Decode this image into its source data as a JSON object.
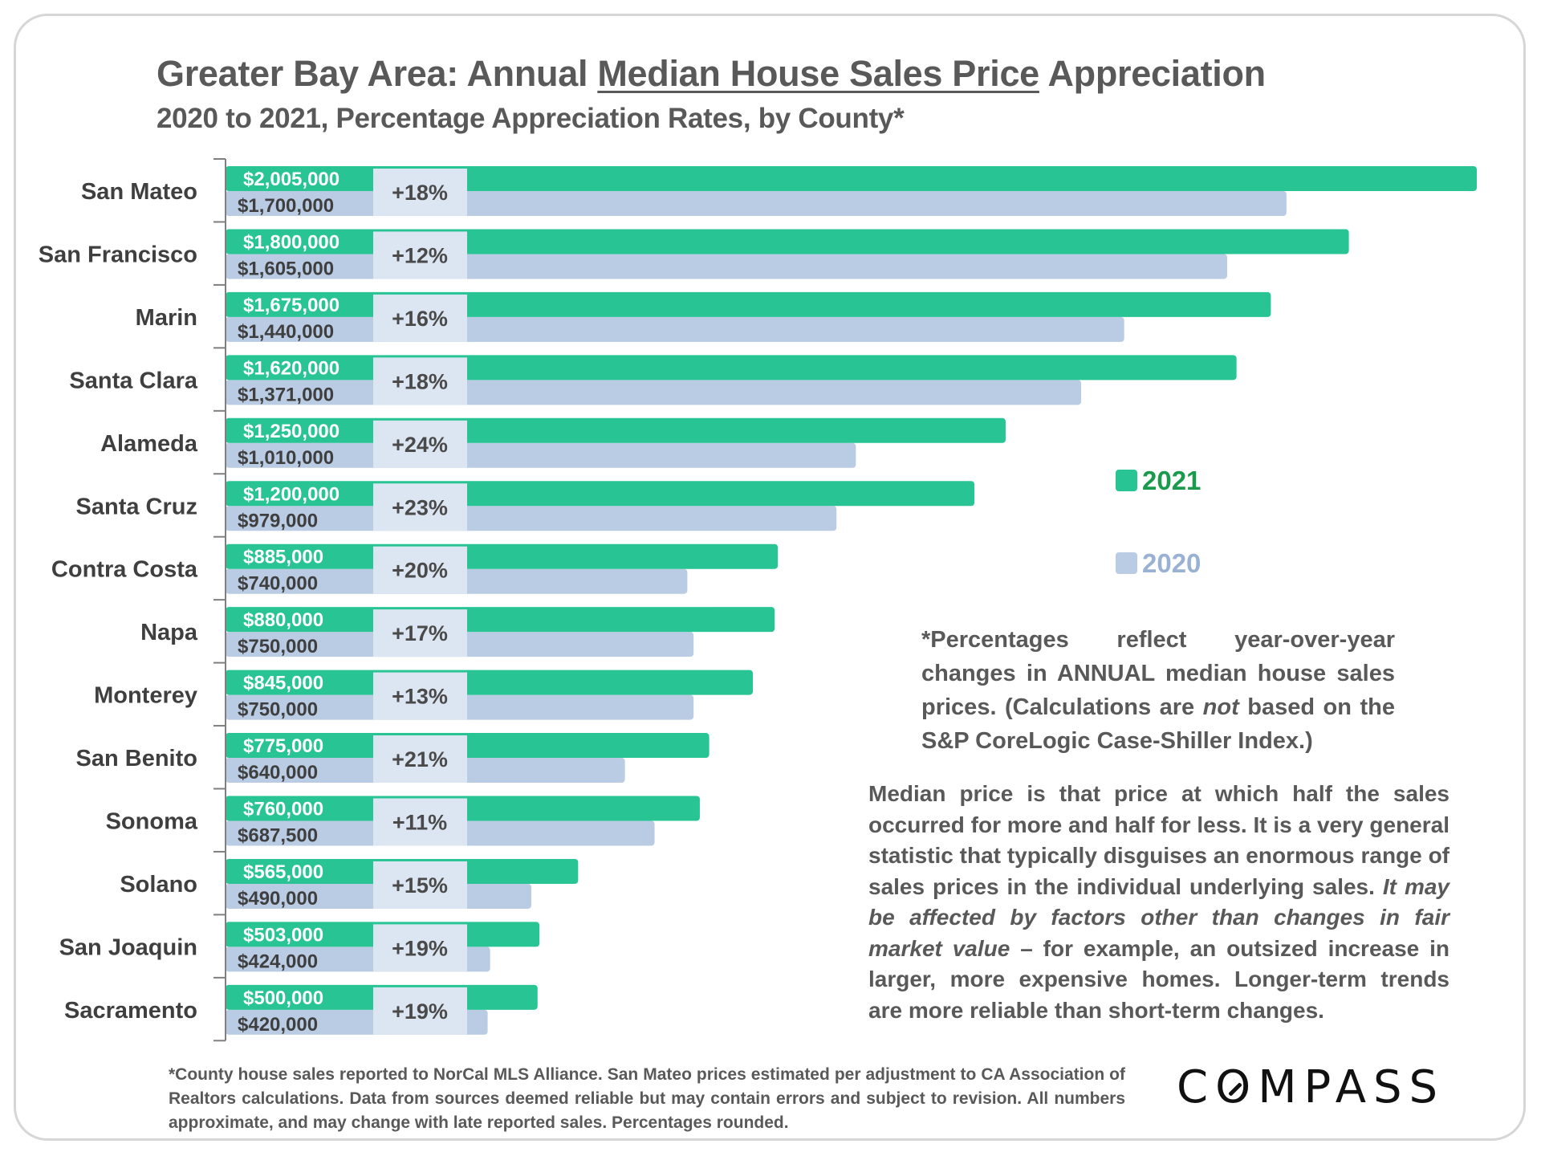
{
  "title": {
    "prefix": "Greater Bay Area: Annual ",
    "underlined": "Median House Sales Price",
    "suffix": " Appreciation"
  },
  "subtitle": "2020 to 2021, Percentage Appreciation Rates, by County*",
  "legend": [
    {
      "label": "2021",
      "color": "#28c494"
    },
    {
      "label": "2020",
      "color": "#b9cce4"
    }
  ],
  "notes": {
    "note1_parts": [
      "*Percentages reflect year-over-year changes in ANNUAL median house sales prices. (Calculations are ",
      "not",
      " based on the S&P CoreLogic Case-Shiller Index.)"
    ],
    "note2_parts": [
      "Median price is that price at which half the sales occurred for more and half for less. It is a very general statistic that typically disguises an enormous range of sales prices in the individual underlying sales. ",
      "It may be affected by factors other than changes in fair market value",
      " – for example, an outsized increase in larger, more expensive homes. Longer-term trends are more reliable than short-term changes."
    ]
  },
  "footer": "*County house sales reported to NorCal MLS Alliance. San Mateo prices estimated per adjustment to CA Association of Realtors calculations. Data from sources deemed reliable but may contain errors and subject to revision.  All numbers approximate, and may change with late reported sales. Percentages rounded.",
  "logo": {
    "before": "C",
    "o": "O",
    "after": "MPASS"
  },
  "colors": {
    "bar2021": "#28c494",
    "bar2020": "#b9cce4",
    "pctBox": "#dce5f2",
    "axis": "#7f7f7f"
  },
  "chart_data": {
    "type": "bar",
    "orientation": "horizontal",
    "title": "Greater Bay Area: Annual Median House Sales Price Appreciation",
    "subtitle": "2020 to 2021, Percentage Appreciation Rates, by County*",
    "xlabel": "",
    "ylabel": "",
    "xlim": [
      0,
      2005000
    ],
    "grid": false,
    "legend_position": "right",
    "categories": [
      "San Mateo",
      "San Francisco",
      "Marin",
      "Santa Clara",
      "Alameda",
      "Santa Cruz",
      "Contra Costa",
      "Napa",
      "Monterey",
      "San Benito",
      "Sonoma",
      "Solano",
      "San Joaquin",
      "Sacramento"
    ],
    "series": [
      {
        "name": "2021",
        "values": [
          2005000,
          1800000,
          1675000,
          1620000,
          1250000,
          1200000,
          885000,
          880000,
          845000,
          775000,
          760000,
          565000,
          503000,
          500000
        ],
        "labels": [
          "$2,005,000",
          "$1,800,000",
          "$1,675,000",
          "$1,620,000",
          "$1,250,000",
          "$1,200,000",
          "$885,000",
          "$880,000",
          "$845,000",
          "$775,000",
          "$760,000",
          "$565,000",
          "$503,000",
          "$500,000"
        ]
      },
      {
        "name": "2020",
        "values": [
          1700000,
          1605000,
          1440000,
          1371000,
          1010000,
          979000,
          740000,
          750000,
          750000,
          640000,
          687500,
          490000,
          424000,
          420000
        ],
        "labels": [
          "$1,700,000",
          "$1,605,000",
          "$1,440,000",
          "$1,371,000",
          "$1,010,000",
          "$979,000",
          "$740,000",
          "$750,000",
          "$750,000",
          "$640,000",
          "$687,500",
          "$490,000",
          "$424,000",
          "$420,000"
        ]
      }
    ],
    "annotations": [
      "+18%",
      "+12%",
      "+16%",
      "+18%",
      "+24%",
      "+23%",
      "+20%",
      "+17%",
      "+13%",
      "+21%",
      "+11%",
      "+15%",
      "+19%",
      "+19%"
    ]
  }
}
